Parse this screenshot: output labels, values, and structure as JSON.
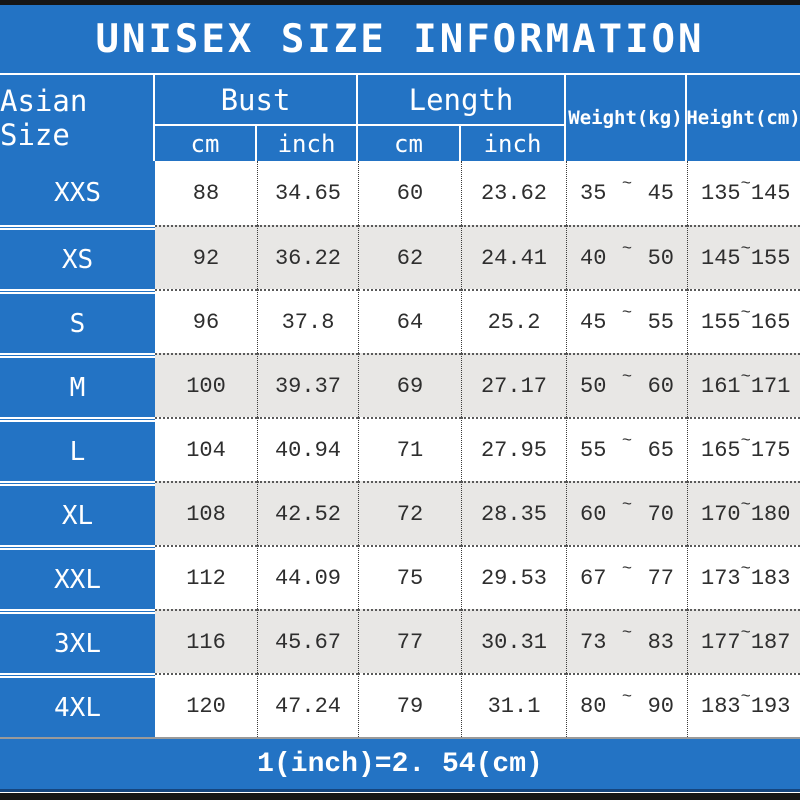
{
  "title": "UNISEX SIZE INFORMATION",
  "colors": {
    "accent_blue": "#2373c4",
    "row_alt_gray": "#e8e7e5",
    "edge_bar": "#161616"
  },
  "header": {
    "size_col": "Asian Size",
    "bust": {
      "label": "Bust",
      "sub": [
        "cm",
        "inch"
      ]
    },
    "length": {
      "label": "Length",
      "sub": [
        "cm",
        "inch"
      ]
    },
    "weight": "Weight(kg)",
    "height": "Height(cm)"
  },
  "glyphs": {
    "tilde": "~"
  },
  "rows": [
    {
      "size": "XXS",
      "bust_cm": "88",
      "bust_inch": "34.65",
      "length_cm": "60",
      "length_inch": "23.62",
      "weight_min": "35",
      "weight_max": "45",
      "height_min": "135",
      "height_max": "145"
    },
    {
      "size": "XS",
      "bust_cm": "92",
      "bust_inch": "36.22",
      "length_cm": "62",
      "length_inch": "24.41",
      "weight_min": "40",
      "weight_max": "50",
      "height_min": "145",
      "height_max": "155"
    },
    {
      "size": "S",
      "bust_cm": "96",
      "bust_inch": "37.8",
      "length_cm": "64",
      "length_inch": "25.2",
      "weight_min": "45",
      "weight_max": "55",
      "height_min": "155",
      "height_max": "165"
    },
    {
      "size": "M",
      "bust_cm": "100",
      "bust_inch": "39.37",
      "length_cm": "69",
      "length_inch": "27.17",
      "weight_min": "50",
      "weight_max": "60",
      "height_min": "161",
      "height_max": "171"
    },
    {
      "size": "L",
      "bust_cm": "104",
      "bust_inch": "40.94",
      "length_cm": "71",
      "length_inch": "27.95",
      "weight_min": "55",
      "weight_max": "65",
      "height_min": "165",
      "height_max": "175"
    },
    {
      "size": "XL",
      "bust_cm": "108",
      "bust_inch": "42.52",
      "length_cm": "72",
      "length_inch": "28.35",
      "weight_min": "60",
      "weight_max": "70",
      "height_min": "170",
      "height_max": "180"
    },
    {
      "size": "XXL",
      "bust_cm": "112",
      "bust_inch": "44.09",
      "length_cm": "75",
      "length_inch": "29.53",
      "weight_min": "67",
      "weight_max": "77",
      "height_min": "173",
      "height_max": "183"
    },
    {
      "size": "3XL",
      "bust_cm": "116",
      "bust_inch": "45.67",
      "length_cm": "77",
      "length_inch": "30.31",
      "weight_min": "73",
      "weight_max": "83",
      "height_min": "177",
      "height_max": "187"
    },
    {
      "size": "4XL",
      "bust_cm": "120",
      "bust_inch": "47.24",
      "length_cm": "79",
      "length_inch": "31.1",
      "weight_min": "80",
      "weight_max": "90",
      "height_min": "183",
      "height_max": "193"
    }
  ],
  "footer": {
    "note": "1(inch)=2. 54(cm)"
  }
}
